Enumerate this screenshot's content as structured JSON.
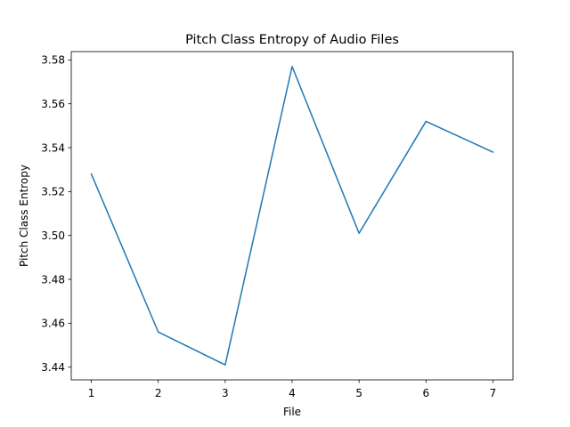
{
  "chart_data": {
    "type": "line",
    "title": "Pitch Class Entropy of Audio Files",
    "xlabel": "File",
    "ylabel": "Pitch Class Entropy",
    "x": [
      1,
      2,
      3,
      4,
      5,
      6,
      7
    ],
    "series": [
      {
        "values": [
          3.528,
          3.456,
          3.441,
          3.577,
          3.501,
          3.552,
          3.538
        ],
        "color": "#1f77b4"
      }
    ],
    "xticks": [
      1,
      2,
      3,
      4,
      5,
      6,
      7
    ],
    "yticks": [
      3.44,
      3.46,
      3.48,
      3.5,
      3.52,
      3.54,
      3.56,
      3.58
    ],
    "ytick_labels": [
      "3.44",
      "3.46",
      "3.48",
      "3.50",
      "3.52",
      "3.54",
      "3.56",
      "3.58"
    ],
    "xlim": [
      0.7,
      7.3
    ],
    "ylim": [
      3.4342,
      3.5838
    ],
    "grid": false,
    "legend": false
  }
}
